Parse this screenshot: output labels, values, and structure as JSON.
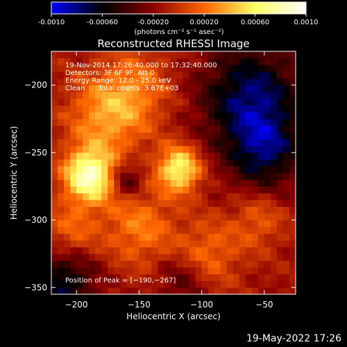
{
  "colorbar": {
    "ticks": [
      "-0.0010",
      "-0.00060",
      "-0.00020",
      "0.00020",
      "0.00060",
      "0.0010"
    ],
    "tick_values": [
      -0.001,
      -0.0006,
      -0.0002,
      0.0002,
      0.0006,
      0.001
    ],
    "range": [
      -0.001,
      0.001
    ],
    "units_label": "(photons cm⁻² s⁻¹ asec⁻²)"
  },
  "chart_data": {
    "type": "heatmap",
    "title": "Reconstructed RHESSI Image",
    "xlabel": "Heliocentric X (arcsec)",
    "ylabel": "Heliocentric Y (arcsec)",
    "xlim": [
      -220,
      -25
    ],
    "ylim": [
      -355,
      -175
    ],
    "x_ticks": [
      -200,
      -150,
      -100,
      -50
    ],
    "x_tick_labels": [
      "−200",
      "−150",
      "−100",
      "−50"
    ],
    "y_ticks": [
      -200,
      -250,
      -300,
      -350
    ],
    "y_tick_labels": [
      "−200",
      "−250",
      "−300",
      "−350"
    ],
    "colormap": [
      "#0000ff",
      "#000000",
      "#8b0000",
      "#ff6600",
      "#ffff66",
      "#ffffff"
    ],
    "peak": {
      "x": -190,
      "y": -267
    },
    "annotations": [
      "19-Nov-2014 17:26:40.000 to 17:32:40.000",
      "Detectors: 3F 6F 9F, Att 0",
      "Energy Range: 12.0 - 25.0 keV",
      "Clean      Total counts: 3.67E+03"
    ],
    "peak_label": "Position of Peak = [−190,−267]"
  },
  "timestamp": "19-May-2022 17:26"
}
